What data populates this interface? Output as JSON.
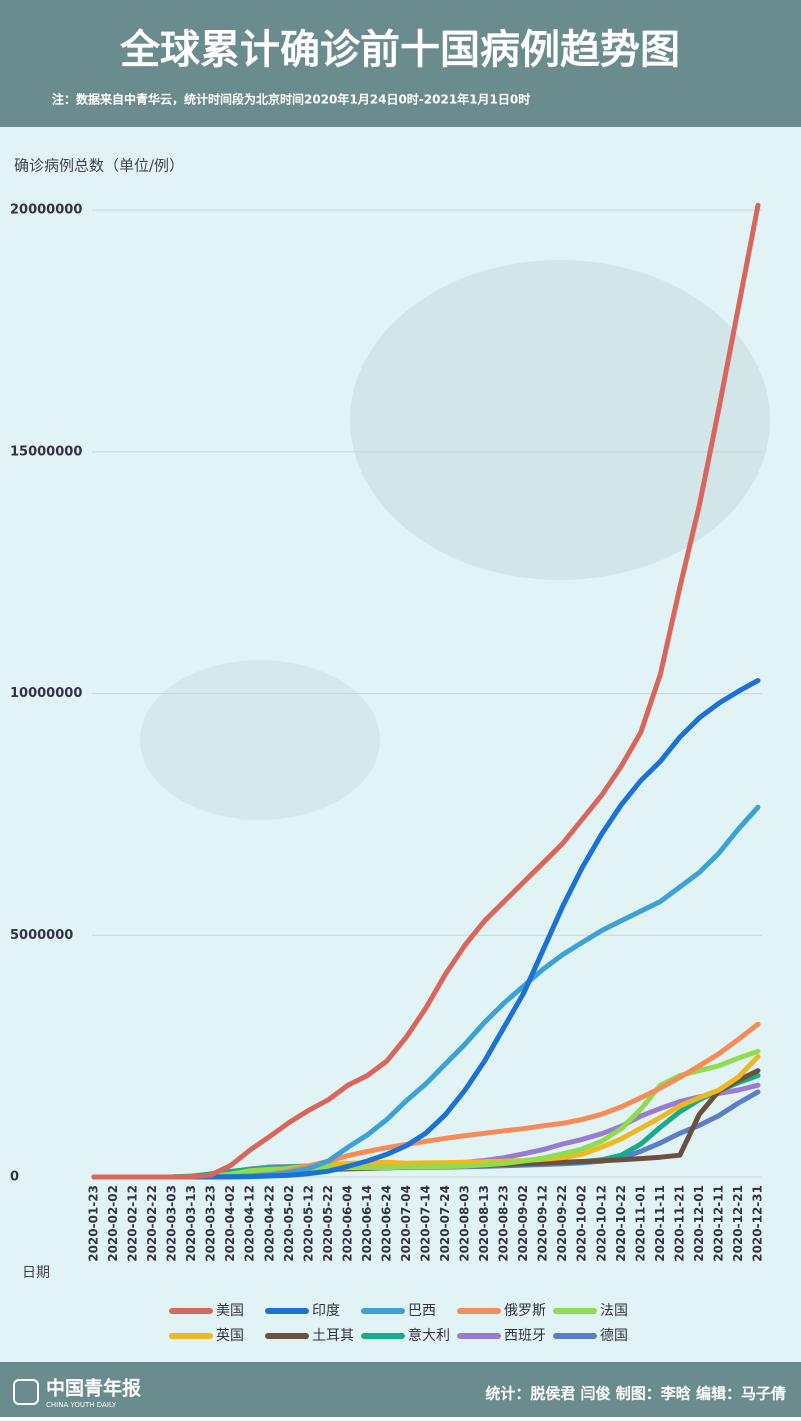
{
  "chart_data": {
    "type": "line",
    "title": "全球累计确诊前十国病例趋势图",
    "subtitle": "注：数据来自中青华云，统计时间段为北京时间2020年1月24日0时-2021年1月1日0时",
    "y_label": "确诊病例总数（单位/例）",
    "x_label": "日期",
    "categories": [
      "2020-01-23",
      "2020-02-02",
      "2020-02-12",
      "2020-02-22",
      "2020-03-03",
      "2020-03-13",
      "2020-03-23",
      "2020-04-02",
      "2020-04-12",
      "2020-04-22",
      "2020-05-02",
      "2020-05-12",
      "2020-05-22",
      "2020-06-04",
      "2020-06-14",
      "2020-06-24",
      "2020-07-04",
      "2020-07-14",
      "2020-07-24",
      "2020-08-03",
      "2020-08-13",
      "2020-08-23",
      "2020-09-02",
      "2020-09-12",
      "2020-09-22",
      "2020-10-02",
      "2020-10-12",
      "2020-10-22",
      "2020-11-01",
      "2020-11-11",
      "2020-11-21",
      "2020-12-01",
      "2020-12-11",
      "2020-12-21",
      "2020-12-31"
    ],
    "ylim": [
      0,
      20500000
    ],
    "yticks": [
      0,
      5000000,
      10000000,
      15000000,
      20000000
    ],
    "grid": true,
    "series": [
      {
        "name": "美国",
        "color": "#d9665c",
        "values": [
          1,
          8,
          13,
          35,
          100,
          2000,
          43000,
          240000,
          560000,
          840000,
          1130000,
          1380000,
          1600000,
          1900000,
          2100000,
          2400000,
          2900000,
          3500000,
          4200000,
          4800000,
          5300000,
          5700000,
          6100000,
          6500000,
          6900000,
          7400000,
          7900000,
          8500000,
          9200000,
          10400000,
          12200000,
          13900000,
          15900000,
          18000000,
          20100000
        ]
      },
      {
        "name": "印度",
        "color": "#1a72d6",
        "values": [
          0,
          1,
          3,
          3,
          5,
          80,
          450,
          2500,
          9000,
          20000,
          37000,
          70000,
          120000,
          220000,
          330000,
          470000,
          650000,
          910000,
          1290000,
          1800000,
          2400000,
          3100000,
          3800000,
          4700000,
          5600000,
          6400000,
          7100000,
          7700000,
          8200000,
          8600000,
          9100000,
          9500000,
          9800000,
          10050000,
          10270000
        ]
      },
      {
        "name": "巴西",
        "color": "#3ba3d4",
        "values": [
          0,
          0,
          0,
          0,
          2,
          80,
          1900,
          8000,
          22000,
          45000,
          97000,
          178000,
          330000,
          615000,
          870000,
          1190000,
          1580000,
          1930000,
          2340000,
          2750000,
          3200000,
          3600000,
          3950000,
          4300000,
          4600000,
          4850000,
          5100000,
          5300000,
          5500000,
          5700000,
          6000000,
          6300000,
          6700000,
          7200000,
          7650000
        ]
      },
      {
        "name": "俄罗斯",
        "color": "#f58b57",
        "values": [
          0,
          2,
          2,
          2,
          3,
          30,
          500,
          3000,
          16000,
          58000,
          124000,
          232000,
          326000,
          440000,
          530000,
          606000,
          674000,
          739000,
          800000,
          856000,
          905000,
          956000,
          1000000,
          1060000,
          1110000,
          1190000,
          1300000,
          1450000,
          1640000,
          1840000,
          2060000,
          2300000,
          2550000,
          2850000,
          3160000
        ]
      },
      {
        "name": "法国",
        "color": "#8fdc4e",
        "values": [
          3,
          6,
          11,
          12,
          200,
          3600,
          20000,
          60000,
          130000,
          158000,
          168000,
          178000,
          182000,
          190000,
          194000,
          197000,
          204000,
          210000,
          218000,
          228000,
          250000,
          280000,
          330000,
          390000,
          480000,
          580000,
          740000,
          1000000,
          1400000,
          1900000,
          2100000,
          2200000,
          2300000,
          2460000,
          2600000
        ]
      },
      {
        "name": "英国",
        "color": "#f0b820",
        "values": [
          0,
          2,
          9,
          9,
          50,
          800,
          6700,
          34000,
          85000,
          134000,
          183000,
          227000,
          255000,
          281000,
          296000,
          307000,
          285000,
          291000,
          298000,
          305000,
          315000,
          325000,
          339000,
          366000,
          404000,
          470000,
          618000,
          790000,
          1010000,
          1230000,
          1470000,
          1640000,
          1800000,
          2070000,
          2490000
        ]
      },
      {
        "name": "土耳其",
        "color": "#6b5040",
        "values": [
          0,
          0,
          0,
          0,
          0,
          5,
          1500,
          18000,
          57000,
          99000,
          124000,
          139000,
          154000,
          167000,
          178000,
          192000,
          204000,
          214000,
          224000,
          233000,
          245000,
          259000,
          273000,
          290000,
          305000,
          320000,
          337000,
          357000,
          380000,
          410000,
          450000,
          1300000,
          1780000,
          2000000,
          2200000
        ]
      },
      {
        "name": "意大利",
        "color": "#17ab8a",
        "values": [
          0,
          2,
          3,
          76,
          2500,
          17600,
          64000,
          115000,
          156000,
          187000,
          209000,
          221000,
          228000,
          234000,
          237000,
          239000,
          241000,
          243000,
          246000,
          248000,
          251000,
          258000,
          270000,
          284000,
          300000,
          317000,
          355000,
          450000,
          680000,
          1030000,
          1350000,
          1600000,
          1790000,
          1950000,
          2100000
        ]
      },
      {
        "name": "西班牙",
        "color": "#9b7bd0",
        "values": [
          0,
          1,
          2,
          2,
          150,
          5200,
          35000,
          110000,
          166000,
          208000,
          216000,
          228000,
          234000,
          240000,
          244000,
          247000,
          251000,
          256000,
          272000,
          302000,
          342000,
          400000,
          480000,
          566000,
          682000,
          778000,
          896000,
          1050000,
          1260000,
          1420000,
          1560000,
          1660000,
          1730000,
          1800000,
          1900000
        ]
      },
      {
        "name": "德国",
        "color": "#5b7ec8",
        "values": [
          0,
          10,
          16,
          16,
          200,
          3700,
          29000,
          84000,
          127000,
          150000,
          164000,
          171000,
          179000,
          184000,
          187000,
          193000,
          197000,
          200000,
          205000,
          211000,
          220000,
          234000,
          246000,
          258000,
          275000,
          296000,
          329000,
          392000,
          532000,
          705000,
          903000,
          1070000,
          1270000,
          1530000,
          1760000
        ]
      }
    ]
  },
  "footer": {
    "logo": "中国青年报",
    "logo_en": "CHINA YOUTH DAILY",
    "credits": "统计：脱侯君 闫俊 制图：李晗 编辑：马子倩"
  }
}
